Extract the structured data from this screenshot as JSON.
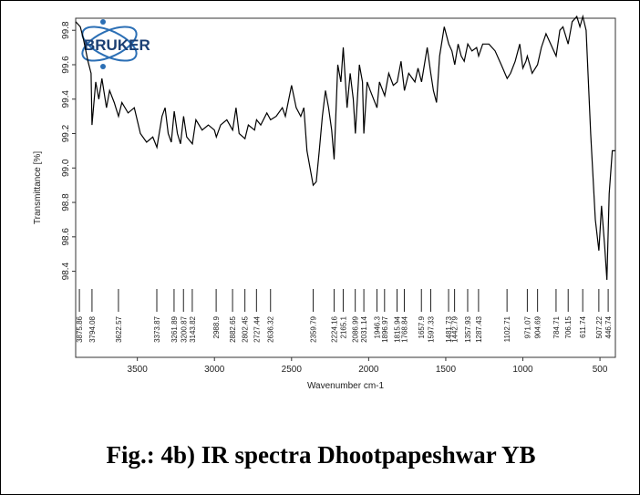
{
  "chart_data": {
    "type": "line",
    "logo": "BRUKER",
    "xlabel": "Wavenumber cm-1",
    "ylabel": "Transmittance [%]",
    "caption": "Fig.: 4b) IR spectra Dhootpapeshwar YB",
    "color": "#000000",
    "xlim": [
      3900,
      400
    ],
    "ylim": [
      97.9,
      99.87
    ],
    "xticks": [
      3500,
      3000,
      2500,
      2000,
      1500,
      1000,
      500
    ],
    "yticks": [
      98.4,
      98.6,
      98.8,
      {
        "value": 99,
        "label": "99.0"
      },
      99.2,
      99.4,
      99.6,
      99.8
    ],
    "peaks": [
      3875.86,
      3794.08,
      3622.57,
      3373.87,
      3261.89,
      3200.87,
      3143.82,
      2988.9,
      2882.65,
      2802.45,
      2727.44,
      2636.32,
      2359.79,
      2224.16,
      2165.1,
      2086.99,
      2031.14,
      1946.3,
      1896.97,
      1815.94,
      1768.84,
      1657.9,
      1597.33,
      1481.73,
      1442.79,
      1357.93,
      1287.43,
      1102.71,
      971.07,
      904.69,
      784.71,
      706.15,
      611.74,
      507.22,
      446.74
    ],
    "x": [
      3900,
      3870,
      3850,
      3820,
      3800,
      3794,
      3770,
      3750,
      3730,
      3700,
      3680,
      3650,
      3622,
      3600,
      3560,
      3520,
      3480,
      3440,
      3400,
      3373,
      3340,
      3320,
      3300,
      3280,
      3261,
      3240,
      3220,
      3200,
      3180,
      3143,
      3120,
      3080,
      3040,
      3000,
      2988,
      2960,
      2920,
      2882,
      2860,
      2840,
      2802,
      2780,
      2740,
      2727,
      2700,
      2660,
      2636,
      2600,
      2560,
      2540,
      2500,
      2470,
      2440,
      2420,
      2400,
      2380,
      2360,
      2340,
      2320,
      2300,
      2280,
      2260,
      2240,
      2224,
      2200,
      2180,
      2165,
      2140,
      2120,
      2100,
      2086,
      2060,
      2040,
      2031,
      2010,
      1990,
      1946,
      1930,
      1896,
      1870,
      1840,
      1815,
      1790,
      1768,
      1740,
      1700,
      1680,
      1657,
      1620,
      1597,
      1580,
      1560,
      1540,
      1510,
      1481,
      1460,
      1442,
      1420,
      1400,
      1380,
      1357,
      1330,
      1300,
      1287,
      1260,
      1220,
      1180,
      1140,
      1102,
      1080,
      1050,
      1020,
      1000,
      980,
      971,
      940,
      905,
      880,
      850,
      820,
      784,
      760,
      740,
      706,
      680,
      650,
      630,
      611,
      590,
      560,
      530,
      507,
      490,
      470,
      455,
      440,
      420,
      400
    ],
    "values": [
      99.85,
      99.82,
      99.75,
      99.62,
      99.55,
      99.25,
      99.5,
      99.4,
      99.52,
      99.35,
      99.45,
      99.38,
      99.3,
      99.38,
      99.32,
      99.35,
      99.2,
      99.15,
      99.18,
      99.12,
      99.3,
      99.35,
      99.2,
      99.15,
      99.33,
      99.2,
      99.14,
      99.3,
      99.18,
      99.14,
      99.28,
      99.22,
      99.25,
      99.22,
      99.18,
      99.25,
      99.28,
      99.22,
      99.35,
      99.2,
      99.17,
      99.25,
      99.22,
      99.28,
      99.25,
      99.32,
      99.28,
      99.3,
      99.35,
      99.3,
      99.48,
      99.35,
      99.3,
      99.35,
      99.1,
      99.0,
      98.9,
      98.92,
      99.1,
      99.3,
      99.45,
      99.35,
      99.22,
      99.05,
      99.6,
      99.5,
      99.7,
      99.35,
      99.55,
      99.4,
      99.2,
      99.6,
      99.5,
      99.2,
      99.5,
      99.45,
      99.35,
      99.5,
      99.42,
      99.55,
      99.48,
      99.5,
      99.62,
      99.45,
      99.55,
      99.5,
      99.58,
      99.5,
      99.7,
      99.55,
      99.45,
      99.38,
      99.65,
      99.82,
      99.72,
      99.68,
      99.6,
      99.72,
      99.65,
      99.62,
      99.72,
      99.68,
      99.7,
      99.65,
      99.72,
      99.72,
      99.68,
      99.6,
      99.52,
      99.55,
      99.62,
      99.72,
      99.58,
      99.62,
      99.65,
      99.55,
      99.6,
      99.7,
      99.78,
      99.72,
      99.65,
      99.8,
      99.82,
      99.72,
      99.85,
      99.88,
      99.82,
      99.88,
      99.8,
      99.2,
      98.7,
      98.52,
      98.78,
      98.55,
      98.35,
      98.85,
      99.1,
      99.1
    ]
  }
}
